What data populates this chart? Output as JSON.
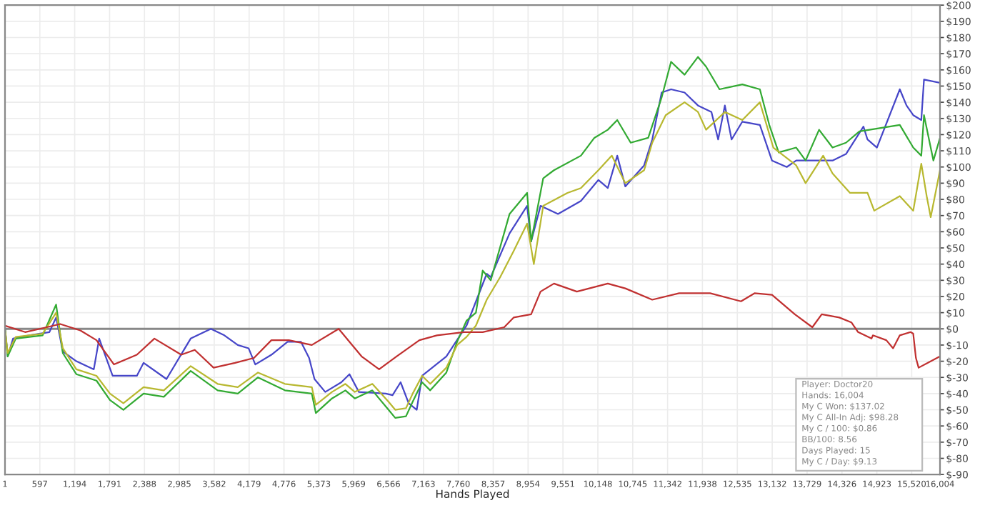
{
  "chart_data": {
    "type": "line",
    "xlabel": "Hands Played",
    "xlim": [
      1,
      16004
    ],
    "xticks": [
      1,
      597,
      {
        "value": 1194,
        "label": "1,194"
      },
      {
        "value": 1791,
        "label": "1,791"
      },
      {
        "value": 2388,
        "label": "2,388"
      },
      {
        "value": 2985,
        "label": "2,985"
      },
      {
        "value": 3582,
        "label": "3,582"
      },
      {
        "value": 4179,
        "label": "4,179"
      },
      {
        "value": 4776,
        "label": "4,776"
      },
      {
        "value": 5373,
        "label": "5,373"
      },
      {
        "value": 5969,
        "label": "5,969"
      },
      {
        "value": 6566,
        "label": "6,566"
      },
      {
        "value": 7163,
        "label": "7,163"
      },
      {
        "value": 7760,
        "label": "7,760"
      },
      {
        "value": 8357,
        "label": "8,357"
      },
      {
        "value": 8954,
        "label": "8,954"
      },
      {
        "value": 9551,
        "label": "9,551"
      },
      {
        "value": 10148,
        "label": "10,148"
      },
      {
        "value": 10745,
        "label": "10,745"
      },
      {
        "value": 11342,
        "label": "11,342"
      },
      {
        "value": 11938,
        "label": "11,938"
      },
      {
        "value": 12535,
        "label": "12,535"
      },
      {
        "value": 13132,
        "label": "13,132"
      },
      {
        "value": 13729,
        "label": "13,729"
      },
      {
        "value": 14326,
        "label": "14,326"
      },
      {
        "value": 14923,
        "label": "14,923"
      },
      {
        "value": 15520,
        "label": "15,520"
      },
      {
        "value": 16004,
        "label": "16,004"
      }
    ],
    "ylim": [
      -90,
      200
    ],
    "yticks": [
      {
        "value": -90,
        "label": "$-90"
      },
      {
        "value": -80,
        "label": "$-80"
      },
      {
        "value": -70,
        "label": "$-70"
      },
      {
        "value": -60,
        "label": "$-60"
      },
      {
        "value": -50,
        "label": "$-50"
      },
      {
        "value": -40,
        "label": "$-40"
      },
      {
        "value": -30,
        "label": "$-30"
      },
      {
        "value": -20,
        "label": "$-20"
      },
      {
        "value": -10,
        "label": "$-10"
      },
      {
        "value": 0,
        "label": "$0"
      },
      {
        "value": 10,
        "label": "$10"
      },
      {
        "value": 20,
        "label": "$20"
      },
      {
        "value": 30,
        "label": "$30"
      },
      {
        "value": 40,
        "label": "$40"
      },
      {
        "value": 50,
        "label": "$50"
      },
      {
        "value": 60,
        "label": "$60"
      },
      {
        "value": 70,
        "label": "$70"
      },
      {
        "value": 80,
        "label": "$80"
      },
      {
        "value": 90,
        "label": "$90"
      },
      {
        "value": 100,
        "label": "$100"
      },
      {
        "value": 110,
        "label": "$110"
      },
      {
        "value": 120,
        "label": "$120"
      },
      {
        "value": 130,
        "label": "$130"
      },
      {
        "value": 140,
        "label": "$140"
      },
      {
        "value": 150,
        "label": "$150"
      },
      {
        "value": 160,
        "label": "$160"
      },
      {
        "value": 170,
        "label": "$170"
      },
      {
        "value": 180,
        "label": "$180"
      },
      {
        "value": 190,
        "label": "$190"
      },
      {
        "value": 200,
        "label": "$200"
      }
    ],
    "grid": true,
    "legend": false,
    "marker": "none",
    "line_style": "solid",
    "ref_lines": [
      {
        "axis": "y",
        "value": 0,
        "label": null,
        "color": "#888888"
      }
    ],
    "annotations": [
      "Player: Doctor20",
      "Hands: 16,004",
      "My C Won: $137.02",
      "My C All-In Adj: $98.28",
      "My C / 100: $0.86",
      "BB/100: 8.56",
      "Days Played: 15",
      "My C / Day: $9.13"
    ],
    "series": [
      {
        "color": "#4646c8",
        "x": [
          1,
          47,
          139,
          416,
          761,
          876,
          991,
          1222,
          1521,
          1613,
          1843,
          2258,
          2373,
          2765,
          3179,
          3525,
          3755,
          3985,
          4170,
          4285,
          4561,
          4837,
          5067,
          5206,
          5298,
          5482,
          5758,
          5897,
          6058,
          6519,
          6634,
          6772,
          6910,
          7048,
          7140,
          7555,
          7900,
          8246,
          8315,
          8637,
          8937,
          9006,
          9167,
          9466,
          9858,
          10157,
          10318,
          10480,
          10618,
          10940,
          11079,
          11240,
          11401,
          11632,
          11862,
          12092,
          12207,
          12322,
          12437,
          12621,
          12921,
          13128,
          13381,
          13543,
          13842,
          14165,
          14395,
          14694,
          14763,
          14924,
          15316,
          15431,
          15546,
          15684,
          15730,
          16004
        ],
        "values": [
          1,
          -17,
          -6,
          -4,
          -2,
          7,
          -14,
          -20,
          -25,
          -6,
          -29,
          -29,
          -21,
          -31,
          -6,
          0,
          -4,
          -10,
          -12,
          -22,
          -16,
          -8,
          -8,
          -18,
          -31,
          -39,
          -33,
          -28,
          -39,
          -40,
          -41,
          -33,
          -46,
          -50,
          -29,
          -17,
          2,
          34,
          32,
          59,
          76,
          54,
          76,
          71,
          79,
          92,
          87,
          107,
          88,
          101,
          117,
          146,
          148,
          146,
          138,
          134,
          117,
          138,
          117,
          128,
          126,
          104,
          100,
          104,
          104,
          104,
          108,
          125,
          117,
          112,
          148,
          138,
          132,
          129,
          154,
          152
        ]
      },
      {
        "color": "#33aa33",
        "x": [
          1,
          47,
          185,
          645,
          876,
          991,
          1222,
          1567,
          1797,
          2027,
          2373,
          2719,
          3179,
          3640,
          3985,
          4331,
          4792,
          5252,
          5321,
          5597,
          5827,
          5988,
          6288,
          6565,
          6680,
          6864,
          6979,
          7140,
          7279,
          7555,
          7739,
          7900,
          8061,
          8177,
          8315,
          8637,
          8937,
          9006,
          9213,
          9397,
          9858,
          10088,
          10318,
          10480,
          10710,
          11010,
          11240,
          11401,
          11632,
          11862,
          12000,
          12230,
          12621,
          12921,
          13082,
          13243,
          13543,
          13704,
          13934,
          14165,
          14395,
          14625,
          15316,
          15546,
          15684,
          15730,
          15891,
          16004
        ],
        "values": [
          0,
          -17,
          -6,
          -4,
          15,
          -15,
          -28,
          -32,
          -44,
          -50,
          -40,
          -42,
          -26,
          -38,
          -40,
          -30,
          -38,
          -40,
          -52,
          -43,
          -38,
          -43,
          -38,
          -50,
          -55,
          -54,
          -45,
          -33,
          -38,
          -27,
          -8,
          5,
          10,
          36,
          30,
          71,
          84,
          54,
          93,
          98,
          107,
          118,
          123,
          129,
          115,
          118,
          143,
          165,
          157,
          168,
          162,
          148,
          151,
          148,
          126,
          109,
          112,
          104,
          123,
          112,
          115,
          122,
          126,
          112,
          107,
          132,
          104,
          118
        ]
      },
      {
        "color": "#b8b830",
        "x": [
          1,
          47,
          185,
          645,
          876,
          991,
          1222,
          1567,
          1797,
          2027,
          2373,
          2719,
          3179,
          3640,
          3985,
          4331,
          4792,
          5252,
          5321,
          5597,
          5827,
          5988,
          6288,
          6565,
          6680,
          6864,
          6979,
          7140,
          7279,
          7555,
          7739,
          7900,
          8061,
          8246,
          8477,
          8706,
          8937,
          9052,
          9213,
          9628,
          9858,
          10157,
          10387,
          10618,
          10940,
          11079,
          11309,
          11632,
          11862,
          12000,
          12322,
          12621,
          12921,
          13151,
          13543,
          13704,
          14004,
          14165,
          14464,
          14763,
          14878,
          15316,
          15546,
          15684,
          15776,
          15845,
          16004
        ],
        "values": [
          0,
          -15,
          -5,
          -3,
          10,
          -12,
          -25,
          -29,
          -40,
          -46,
          -36,
          -38,
          -23,
          -34,
          -36,
          -27,
          -34,
          -36,
          -47,
          -39,
          -34,
          -39,
          -34,
          -45,
          -50,
          -49,
          -40,
          -29,
          -34,
          -24,
          -10,
          -5,
          2,
          18,
          32,
          48,
          65,
          40,
          76,
          84,
          87,
          98,
          107,
          90,
          98,
          115,
          132,
          140,
          134,
          123,
          134,
          129,
          140,
          112,
          101,
          90,
          107,
          96,
          84,
          84,
          73,
          82,
          73,
          102,
          82,
          69,
          98
        ]
      },
      {
        "color": "#c03030",
        "x": [
          1,
          346,
          715,
          946,
          1291,
          1567,
          1866,
          2258,
          2558,
          3018,
          3249,
          3571,
          3939,
          4262,
          4561,
          4860,
          5252,
          5712,
          6104,
          6404,
          6703,
          7094,
          7394,
          7855,
          8177,
          8545,
          8706,
          9006,
          9167,
          9397,
          9789,
          10318,
          10618,
          11079,
          11540,
          12069,
          12598,
          12829,
          13128,
          13519,
          13819,
          13980,
          14280,
          14487,
          14602,
          14832,
          14855,
          15085,
          15201,
          15316,
          15500,
          15546,
          15592,
          15638,
          16004
        ],
        "values": [
          2,
          -2,
          1,
          3,
          -1,
          -7,
          -22,
          -16,
          -6,
          -16,
          -13,
          -24,
          -21,
          -18,
          -7,
          -7,
          -10,
          0,
          -17,
          -25,
          -17,
          -7,
          -4,
          -2,
          -2,
          1,
          7,
          9,
          23,
          28,
          23,
          28,
          25,
          18,
          22,
          22,
          17,
          22,
          21,
          9,
          1,
          9,
          7,
          4,
          -2,
          -6,
          -4,
          -7,
          -12,
          -4,
          -2,
          -3,
          -18,
          -24,
          -17
        ]
      }
    ]
  }
}
